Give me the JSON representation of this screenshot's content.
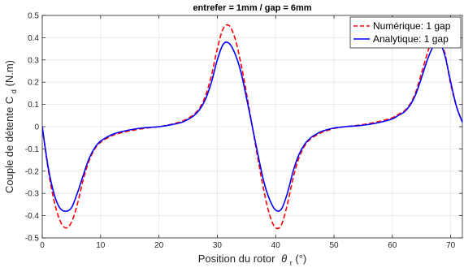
{
  "chart_data": {
    "type": "line",
    "title": "entrefer = 1mm / gap = 6mm",
    "xlabel": "Position du rotor",
    "xlabel_symbol": "θ",
    "xlabel_sub": "r",
    "xlabel_unit": " (°)",
    "ylabel": "Couple de détente C",
    "ylabel_sub": "d",
    "ylabel_unit": " (N.m)",
    "xlim": [
      0,
      72
    ],
    "ylim": [
      -0.5,
      0.5
    ],
    "xticks": [
      0,
      10,
      20,
      30,
      40,
      50,
      60,
      70
    ],
    "yticks": [
      -0.5,
      -0.4,
      -0.3,
      -0.2,
      -0.1,
      0,
      0.1,
      0.2,
      0.3,
      0.4,
      0.5
    ],
    "grid": true,
    "legend_position": "top-right",
    "series": [
      {
        "name": "Numérique: 1 gap",
        "color": "#ff0000",
        "style": "dashed",
        "x": [
          0,
          1,
          2,
          3,
          4,
          5,
          6,
          7,
          8,
          9,
          10,
          12,
          14,
          16,
          18,
          20,
          22,
          24,
          25,
          26,
          27,
          28,
          29,
          30,
          31,
          32,
          33,
          34,
          35,
          36,
          37,
          38,
          39,
          40,
          41,
          42,
          43,
          44,
          45,
          46,
          47,
          48,
          50,
          52,
          54,
          56,
          58,
          60,
          61,
          62,
          63,
          64,
          65,
          66,
          67,
          68,
          69,
          70,
          71,
          72
        ],
        "y": [
          0,
          -0.19,
          -0.33,
          -0.42,
          -0.455,
          -0.43,
          -0.35,
          -0.24,
          -0.155,
          -0.1,
          -0.07,
          -0.04,
          -0.025,
          -0.014,
          -0.006,
          0,
          0.01,
          0.025,
          0.038,
          0.055,
          0.085,
          0.14,
          0.23,
          0.35,
          0.44,
          0.455,
          0.4,
          0.29,
          0.15,
          0,
          -0.15,
          -0.29,
          -0.4,
          -0.455,
          -0.44,
          -0.35,
          -0.23,
          -0.14,
          -0.085,
          -0.055,
          -0.038,
          -0.025,
          -0.008,
          0,
          0.006,
          0.014,
          0.025,
          0.04,
          0.055,
          0.07,
          0.1,
          0.155,
          0.24,
          0.33,
          0.405,
          0.4,
          0.33,
          0.19,
          0.09,
          0.02
        ]
      },
      {
        "name": "Analytique: 1 gap",
        "color": "#0000ff",
        "style": "solid",
        "x": [
          0,
          1,
          2,
          3,
          4,
          5,
          6,
          7,
          8,
          9,
          10,
          12,
          14,
          16,
          18,
          20,
          22,
          24,
          25,
          26,
          27,
          28,
          29,
          30,
          31,
          32,
          33,
          34,
          35,
          36,
          37,
          38,
          39,
          40,
          41,
          42,
          43,
          44,
          45,
          46,
          47,
          48,
          50,
          52,
          54,
          56,
          58,
          60,
          61,
          62,
          63,
          64,
          65,
          66,
          67,
          68,
          69,
          70,
          71,
          72
        ],
        "y": [
          0,
          -0.18,
          -0.3,
          -0.365,
          -0.38,
          -0.365,
          -0.3,
          -0.22,
          -0.145,
          -0.095,
          -0.065,
          -0.035,
          -0.02,
          -0.01,
          -0.004,
          0,
          0.008,
          0.02,
          0.033,
          0.05,
          0.078,
          0.125,
          0.2,
          0.3,
          0.37,
          0.375,
          0.33,
          0.25,
          0.13,
          0,
          -0.13,
          -0.25,
          -0.33,
          -0.375,
          -0.37,
          -0.3,
          -0.2,
          -0.125,
          -0.078,
          -0.05,
          -0.033,
          -0.02,
          -0.006,
          0,
          0.004,
          0.01,
          0.02,
          0.035,
          0.05,
          0.065,
          0.095,
          0.145,
          0.22,
          0.3,
          0.36,
          0.38,
          0.32,
          0.2,
          0.09,
          0.02
        ]
      }
    ]
  }
}
